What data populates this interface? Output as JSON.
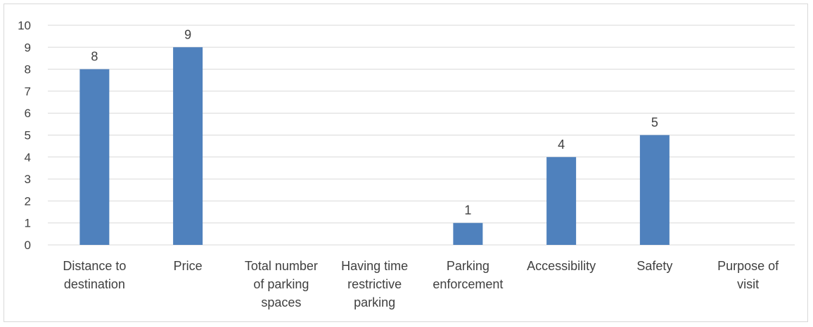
{
  "chart_data": {
    "type": "bar",
    "categories": [
      [
        "Distance to",
        "destination"
      ],
      [
        "Price"
      ],
      [
        "Total number",
        "of parking",
        "spaces"
      ],
      [
        "Having time",
        "restrictive",
        "parking"
      ],
      [
        "Parking",
        "enforcement"
      ],
      [
        "Accessibility"
      ],
      [
        "Safety"
      ],
      [
        "Purpose of",
        "visit"
      ]
    ],
    "values": [
      8,
      9,
      0,
      0,
      1,
      4,
      5,
      0
    ],
    "data_labels": [
      "8",
      "9",
      "",
      "",
      "1",
      "4",
      "5",
      ""
    ],
    "ylim": [
      0,
      10
    ],
    "yticks": [
      0,
      1,
      2,
      3,
      4,
      5,
      6,
      7,
      8,
      9,
      10
    ],
    "grid": true,
    "legend": "none",
    "bar_color": "#4f81bd",
    "grid_color": "#d9d9d9",
    "text_color": "#404040"
  }
}
